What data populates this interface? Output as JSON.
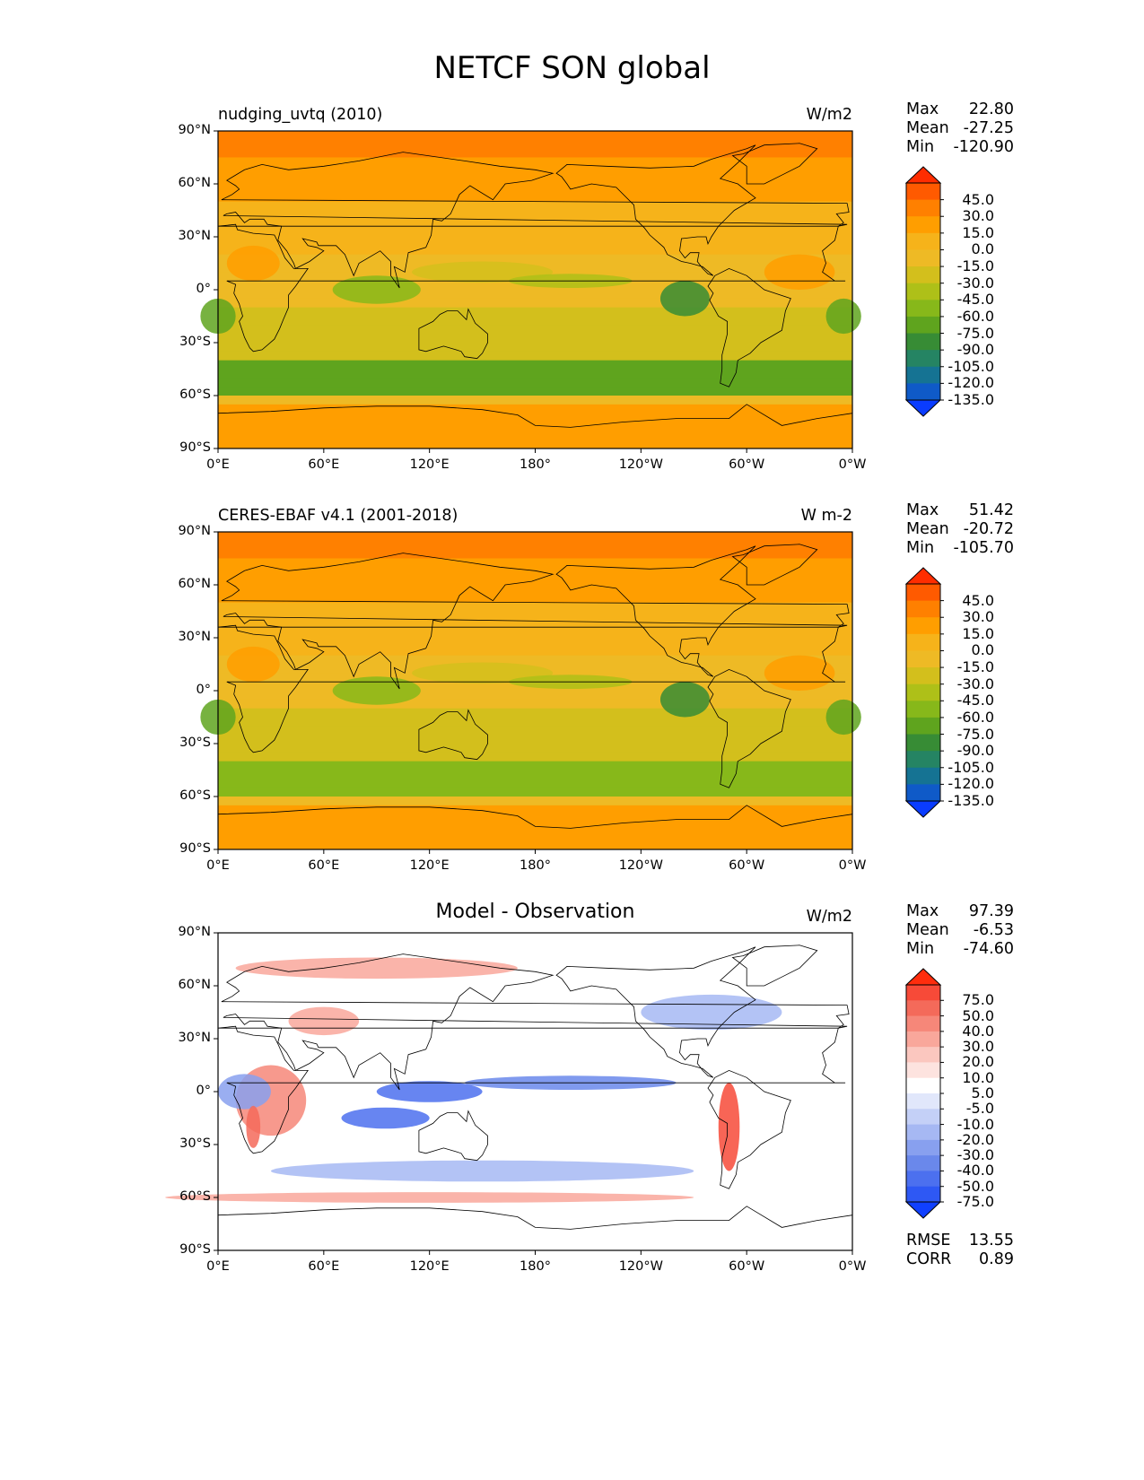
{
  "title": "NETCF SON global",
  "axes": {
    "lat_ticks": [
      "90°N",
      "60°N",
      "30°N",
      "0°",
      "30°S",
      "60°S",
      "90°S"
    ],
    "lon_ticks": [
      "0°E",
      "60°E",
      "120°E",
      "180°",
      "120°W",
      "60°W",
      "0°W"
    ]
  },
  "panels": [
    {
      "title": "nudging_uvtq (2010)",
      "units": "W/m2",
      "stats": [
        {
          "label": "Max",
          "value": "22.80"
        },
        {
          "label": "Mean",
          "value": "-27.25"
        },
        {
          "label": "Min",
          "value": "-120.90"
        }
      ],
      "colorbar": {
        "labels": [
          "45.0",
          "30.0",
          "15.0",
          "0.0",
          "-15.0",
          "-30.0",
          "-45.0",
          "-60.0",
          "-75.0",
          "-90.0",
          "-105.0",
          "-120.0",
          "-135.0"
        ],
        "colors": [
          "#ff2d00",
          "#ff5a00",
          "#ff8000",
          "#ff9e00",
          "#f6b31a",
          "#eeba25",
          "#d3bf1c",
          "#aec018",
          "#87b81a",
          "#5fa41e",
          "#378c35",
          "#258463",
          "#157393",
          "#0f5ac8",
          "#0a3cff"
        ]
      }
    },
    {
      "title": "CERES-EBAF v4.1 (2001-2018)",
      "units": "W m-2",
      "stats": [
        {
          "label": "Max",
          "value": "51.42"
        },
        {
          "label": "Mean",
          "value": "-20.72"
        },
        {
          "label": "Min",
          "value": "-105.70"
        }
      ],
      "colorbar": {
        "labels": [
          "45.0",
          "30.0",
          "15.0",
          "0.0",
          "-15.0",
          "-30.0",
          "-45.0",
          "-60.0",
          "-75.0",
          "-90.0",
          "-105.0",
          "-120.0",
          "-135.0"
        ],
        "colors": [
          "#ff2d00",
          "#ff5a00",
          "#ff8000",
          "#ff9e00",
          "#f6b31a",
          "#eeba25",
          "#d3bf1c",
          "#aec018",
          "#87b81a",
          "#5fa41e",
          "#378c35",
          "#258463",
          "#157393",
          "#0f5ac8",
          "#0a3cff"
        ]
      }
    },
    {
      "title": "Model - Observation",
      "units": "W/m2",
      "stats": [
        {
          "label": "Max",
          "value": "97.39"
        },
        {
          "label": "Mean",
          "value": "-6.53"
        },
        {
          "label": "Min",
          "value": "-74.60"
        }
      ],
      "extra_stats": [
        {
          "label": "RMSE",
          "value": "13.55"
        },
        {
          "label": "CORR",
          "value": "0.89"
        }
      ],
      "colorbar": {
        "labels": [
          "75.0",
          "50.0",
          "40.0",
          "30.0",
          "20.0",
          "10.0",
          "5.0",
          "-5.0",
          "-10.0",
          "-20.0",
          "-30.0",
          "-40.0",
          "-50.0",
          "-75.0"
        ],
        "colors": [
          "#ff2d0d",
          "#f74a38",
          "#f46a5a",
          "#f68779",
          "#f9a79b",
          "#fbc7bf",
          "#fde3df",
          "#ffffff",
          "#e1e7fb",
          "#c4d0f7",
          "#a6b8f3",
          "#88a0ef",
          "#6a88eb",
          "#4c70ef",
          "#2e58f4",
          "#1040ff"
        ]
      }
    }
  ]
}
